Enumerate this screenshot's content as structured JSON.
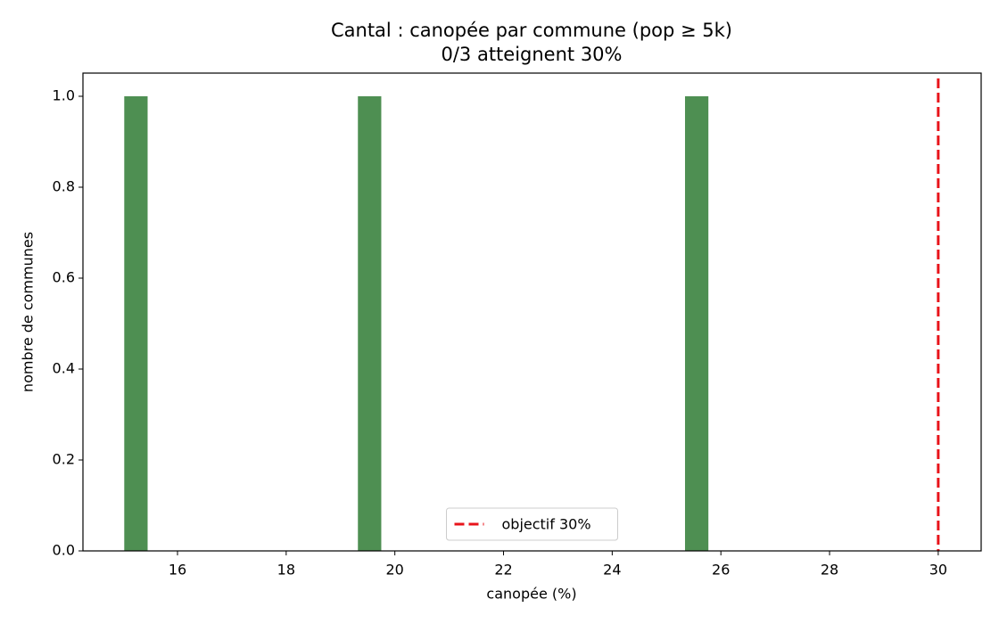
{
  "chart_data": {
    "type": "histogram",
    "title": "Cantal : canopée par commune (pop ≥ 5k)",
    "subtitle": "0/3 atteignent 30%",
    "x_label": "canopée (%)",
    "y_label": "nombre de communes",
    "bins": [
      15.02,
      15.45,
      15.88,
      16.31,
      16.74,
      17.17,
      17.6,
      18.03,
      18.46,
      18.89,
      19.32,
      19.75,
      20.18,
      20.61,
      21.04,
      21.47,
      21.9,
      22.33,
      22.76,
      23.19,
      23.62,
      24.05,
      24.48,
      24.91,
      25.34,
      25.77
    ],
    "values": [
      1,
      0,
      0,
      0,
      0,
      0,
      0,
      0,
      0,
      0,
      1,
      0,
      0,
      0,
      0,
      0,
      0,
      0,
      0,
      0,
      0,
      0,
      0,
      0,
      1
    ],
    "color": "#4e8f52",
    "reference_line": {
      "value": 30,
      "label": "objectif 30%",
      "color": "#e8141b"
    },
    "legend": "lower center",
    "xlim": [
      14.26,
      30.79
    ],
    "ylim": [
      0,
      1.051
    ],
    "xticks": [
      16,
      18,
      20,
      22,
      24,
      26,
      28,
      30
    ],
    "yticks": [
      {
        "value": 0,
        "label": "0.0"
      },
      {
        "value": 0.2,
        "label": "0.2"
      },
      {
        "value": 0.4,
        "label": "0.4"
      },
      {
        "value": 0.6,
        "label": "0.6"
      },
      {
        "value": 0.8,
        "label": "0.8"
      },
      {
        "value": 1.0,
        "label": "1.0"
      }
    ],
    "grid": false
  }
}
